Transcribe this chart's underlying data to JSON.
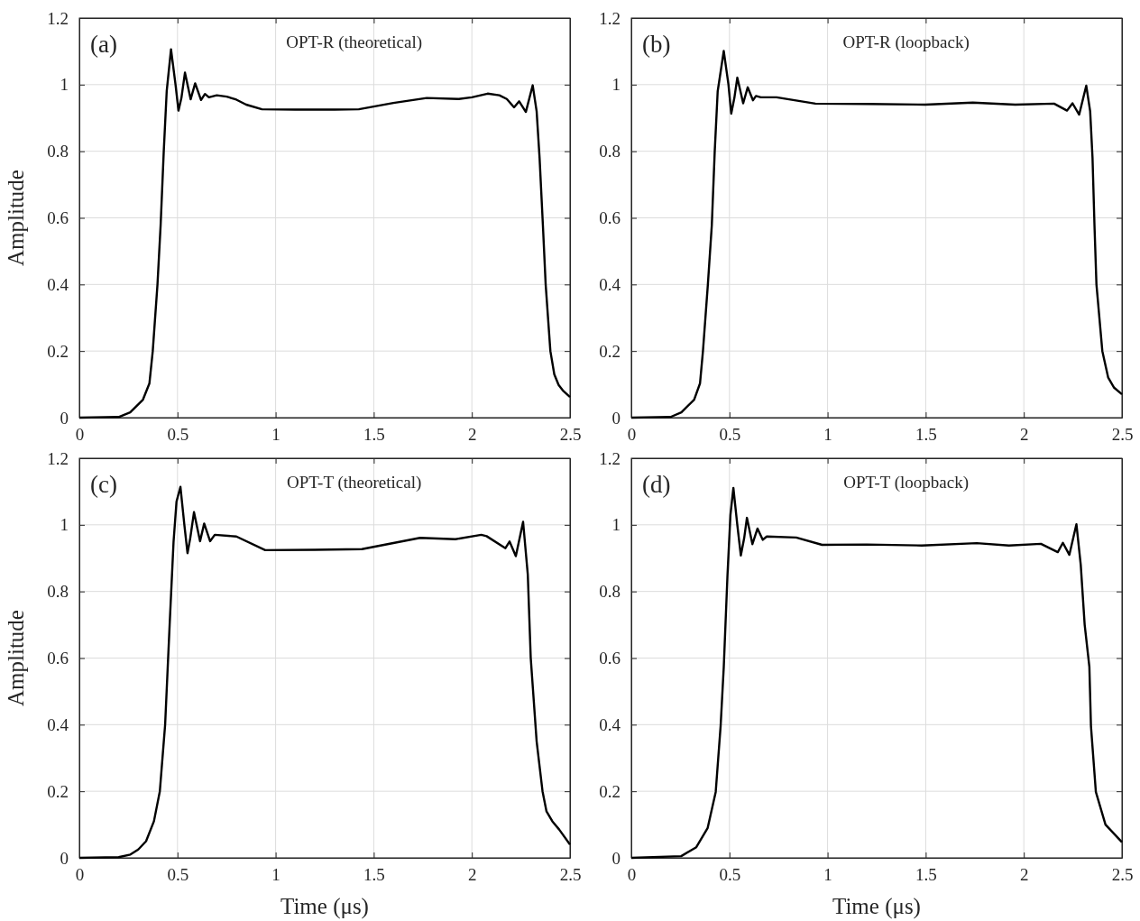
{
  "chart_data": [
    {
      "type": "line",
      "title": "OPT-R (theoretical)",
      "ylabel": "Amplitude",
      "annotations": [
        "(a)"
      ],
      "xlim": [
        0,
        2.5
      ],
      "ylim": [
        0,
        1.2
      ],
      "xticks": [
        0,
        0.5,
        1,
        1.5,
        2,
        2.5
      ],
      "yticks": [
        0,
        0.2,
        0.4,
        0.6,
        0.8,
        1,
        1.2
      ],
      "grid": true,
      "line_style": "solid",
      "marker": "none",
      "series": [
        {
          "color": "#000000",
          "x": [
            0,
            0.2,
            0.259,
            0.324,
            0.357,
            0.374,
            0.398,
            0.414,
            0.43,
            0.445,
            0.467,
            0.49,
            0.505,
            0.52,
            0.538,
            0.567,
            0.59,
            0.62,
            0.64,
            0.66,
            0.7,
            0.751,
            0.8,
            0.85,
            0.93,
            1.1,
            1.3,
            1.424,
            1.6,
            1.77,
            1.933,
            2.0,
            2.08,
            2.14,
            2.178,
            2.215,
            2.241,
            2.275,
            2.31,
            2.33,
            2.345,
            2.362,
            2.376,
            2.4,
            2.42,
            2.442,
            2.466,
            2.5
          ],
          "values": [
            0,
            0.002,
            0.016,
            0.054,
            0.103,
            0.2,
            0.4,
            0.577,
            0.8,
            0.98,
            1.106,
            1.0,
            0.922,
            0.96,
            1.036,
            0.956,
            1.004,
            0.954,
            0.972,
            0.962,
            0.968,
            0.964,
            0.955,
            0.94,
            0.926,
            0.925,
            0.925,
            0.926,
            0.945,
            0.96,
            0.957,
            0.962,
            0.973,
            0.968,
            0.957,
            0.932,
            0.95,
            0.918,
            0.998,
            0.92,
            0.78,
            0.577,
            0.4,
            0.2,
            0.13,
            0.098,
            0.08,
            0.062
          ]
        }
      ]
    },
    {
      "type": "line",
      "title": "OPT-R (loopback)",
      "annotations": [
        "(b)"
      ],
      "xlim": [
        0,
        2.5
      ],
      "ylim": [
        0,
        1.2
      ],
      "xticks": [
        0,
        0.5,
        1,
        1.5,
        2,
        2.5
      ],
      "yticks": [
        0,
        0.2,
        0.4,
        0.6,
        0.8,
        1,
        1.2
      ],
      "grid": true,
      "line_style": "solid",
      "marker": "none",
      "series": [
        {
          "color": "#000000",
          "x": [
            0,
            0.2,
            0.255,
            0.32,
            0.35,
            0.365,
            0.39,
            0.41,
            0.425,
            0.44,
            0.471,
            0.495,
            0.509,
            0.525,
            0.54,
            0.57,
            0.593,
            0.62,
            0.635,
            0.66,
            0.74,
            0.938,
            1.2,
            1.497,
            1.74,
            1.956,
            2.154,
            2.22,
            2.248,
            2.282,
            2.318,
            2.338,
            2.35,
            2.36,
            2.37,
            2.4,
            2.43,
            2.46,
            2.5
          ],
          "values": [
            0,
            0.002,
            0.016,
            0.054,
            0.103,
            0.2,
            0.4,
            0.577,
            0.8,
            0.98,
            1.101,
            1.0,
            0.913,
            0.96,
            1.021,
            0.944,
            0.992,
            0.953,
            0.966,
            0.962,
            0.962,
            0.943,
            0.942,
            0.94,
            0.946,
            0.94,
            0.943,
            0.922,
            0.944,
            0.91,
            0.997,
            0.92,
            0.78,
            0.577,
            0.4,
            0.2,
            0.12,
            0.09,
            0.07
          ]
        }
      ]
    },
    {
      "type": "line",
      "title": "OPT-T (theoretical)",
      "ylabel": "Amplitude",
      "xlabel": "Time (μs)",
      "annotations": [
        "(c)"
      ],
      "xlim": [
        0,
        2.5
      ],
      "ylim": [
        0,
        1.2
      ],
      "xticks": [
        0,
        0.5,
        1,
        1.5,
        2,
        2.5
      ],
      "yticks": [
        0,
        0.2,
        0.4,
        0.6,
        0.8,
        1,
        1.2
      ],
      "grid": true,
      "line_style": "solid",
      "marker": "none",
      "series": [
        {
          "color": "#000000",
          "x": [
            0,
            0.2,
            0.26,
            0.3,
            0.34,
            0.38,
            0.41,
            0.437,
            0.46,
            0.48,
            0.495,
            0.515,
            0.535,
            0.551,
            0.565,
            0.584,
            0.615,
            0.636,
            0.666,
            0.69,
            0.8,
            0.947,
            1.2,
            1.44,
            1.736,
            1.916,
            2.048,
            2.075,
            2.171,
            2.192,
            2.224,
            2.261,
            2.285,
            2.3,
            2.33,
            2.36,
            2.38,
            2.41,
            2.445,
            2.5
          ],
          "values": [
            0,
            0.002,
            0.01,
            0.025,
            0.05,
            0.11,
            0.2,
            0.4,
            0.7,
            0.95,
            1.07,
            1.114,
            1.0,
            0.915,
            0.96,
            1.038,
            0.951,
            1.004,
            0.951,
            0.97,
            0.965,
            0.924,
            0.925,
            0.927,
            0.961,
            0.957,
            0.97,
            0.966,
            0.93,
            0.95,
            0.906,
            1.009,
            0.85,
            0.6,
            0.35,
            0.2,
            0.14,
            0.11,
            0.085,
            0.04
          ]
        }
      ]
    },
    {
      "type": "line",
      "title": "OPT-T (loopback)",
      "xlabel": "Time (μs)",
      "annotations": [
        "(d)"
      ],
      "xlim": [
        0,
        2.5
      ],
      "ylim": [
        0,
        1.2
      ],
      "xticks": [
        0,
        0.5,
        1,
        1.5,
        2,
        2.5
      ],
      "yticks": [
        0,
        0.2,
        0.4,
        0.6,
        0.8,
        1,
        1.2
      ],
      "grid": true,
      "line_style": "solid",
      "marker": "none",
      "series": [
        {
          "color": "#000000",
          "x": [
            0,
            0.254,
            0.331,
            0.389,
            0.43,
            0.455,
            0.471,
            0.49,
            0.505,
            0.52,
            0.54,
            0.558,
            0.575,
            0.589,
            0.617,
            0.643,
            0.67,
            0.69,
            0.84,
            0.972,
            1.2,
            1.48,
            1.76,
            1.924,
            2.087,
            2.173,
            2.199,
            2.232,
            2.268,
            2.29,
            2.31,
            2.334,
            2.342,
            2.367,
            2.416,
            2.5
          ],
          "values": [
            0,
            0.005,
            0.032,
            0.09,
            0.198,
            0.396,
            0.573,
            0.85,
            1.03,
            1.111,
            1.0,
            0.908,
            0.96,
            1.021,
            0.942,
            0.989,
            0.955,
            0.965,
            0.962,
            0.94,
            0.941,
            0.938,
            0.945,
            0.938,
            0.943,
            0.918,
            0.946,
            0.91,
            1.002,
            0.88,
            0.7,
            0.573,
            0.396,
            0.198,
            0.1,
            0.047
          ]
        }
      ]
    }
  ]
}
